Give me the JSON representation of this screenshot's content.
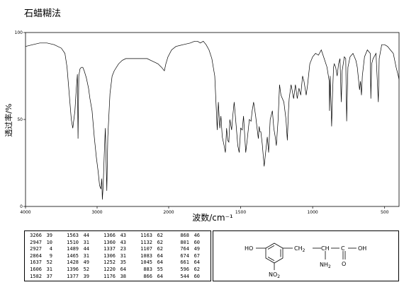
{
  "title": "石蜡糊法",
  "chart_data": {
    "type": "line",
    "xlabel": "波数/cm⁻¹",
    "ylabel": "透过率/%",
    "xlim": [
      4000,
      400
    ],
    "ylim": [
      0,
      100
    ],
    "x_ticks": [
      4000,
      3000,
      2000,
      1500,
      1000,
      500
    ],
    "y_ticks": [
      0,
      50,
      100
    ],
    "series": [
      {
        "points": [
          [
            4000,
            92
          ],
          [
            3900,
            93
          ],
          [
            3800,
            94
          ],
          [
            3700,
            94
          ],
          [
            3600,
            93
          ],
          [
            3500,
            91
          ],
          [
            3450,
            88
          ],
          [
            3420,
            80
          ],
          [
            3400,
            70
          ],
          [
            3380,
            60
          ],
          [
            3360,
            50
          ],
          [
            3340,
            45
          ],
          [
            3310,
            55
          ],
          [
            3290,
            68
          ],
          [
            3275,
            76
          ],
          [
            3266,
            39
          ],
          [
            3255,
            75
          ],
          [
            3240,
            79
          ],
          [
            3220,
            80
          ],
          [
            3200,
            80
          ],
          [
            3180,
            78
          ],
          [
            3150,
            74
          ],
          [
            3120,
            68
          ],
          [
            3100,
            62
          ],
          [
            3070,
            55
          ],
          [
            3040,
            40
          ],
          [
            3010,
            28
          ],
          [
            2985,
            20
          ],
          [
            2965,
            12
          ],
          [
            2947,
            10
          ],
          [
            2935,
            16
          ],
          [
            2927,
            4
          ],
          [
            2915,
            12
          ],
          [
            2900,
            30
          ],
          [
            2885,
            45
          ],
          [
            2864,
            9
          ],
          [
            2850,
            40
          ],
          [
            2820,
            65
          ],
          [
            2790,
            75
          ],
          [
            2760,
            78
          ],
          [
            2700,
            82
          ],
          [
            2650,
            84
          ],
          [
            2600,
            85
          ],
          [
            2500,
            85
          ],
          [
            2400,
            85
          ],
          [
            2300,
            85
          ],
          [
            2250,
            84
          ],
          [
            2200,
            83
          ],
          [
            2150,
            82
          ],
          [
            2100,
            80
          ],
          [
            2060,
            78
          ],
          [
            2040,
            82
          ],
          [
            2010,
            86
          ],
          [
            1980,
            90
          ],
          [
            1950,
            92
          ],
          [
            1900,
            93
          ],
          [
            1850,
            94
          ],
          [
            1820,
            95
          ],
          [
            1800,
            95
          ],
          [
            1780,
            94
          ],
          [
            1760,
            95
          ],
          [
            1740,
            93
          ],
          [
            1720,
            90
          ],
          [
            1700,
            85
          ],
          [
            1680,
            75
          ],
          [
            1663,
            44
          ],
          [
            1655,
            60
          ],
          [
            1645,
            45
          ],
          [
            1637,
            52
          ],
          [
            1628,
            40
          ],
          [
            1615,
            35
          ],
          [
            1606,
            31
          ],
          [
            1598,
            45
          ],
          [
            1590,
            38
          ],
          [
            1582,
            37
          ],
          [
            1575,
            50
          ],
          [
            1563,
            44
          ],
          [
            1555,
            52
          ],
          [
            1545,
            60
          ],
          [
            1530,
            45
          ],
          [
            1520,
            35
          ],
          [
            1510,
            31
          ],
          [
            1500,
            45
          ],
          [
            1489,
            44
          ],
          [
            1480,
            52
          ],
          [
            1465,
            31
          ],
          [
            1455,
            38
          ],
          [
            1440,
            50
          ],
          [
            1428,
            49
          ],
          [
            1420,
            55
          ],
          [
            1410,
            60
          ],
          [
            1396,
            52
          ],
          [
            1386,
            45
          ],
          [
            1377,
            39
          ],
          [
            1372,
            46
          ],
          [
            1366,
            43
          ],
          [
            1360,
            43
          ],
          [
            1350,
            36
          ],
          [
            1337,
            23
          ],
          [
            1328,
            30
          ],
          [
            1315,
            40
          ],
          [
            1306,
            31
          ],
          [
            1295,
            50
          ],
          [
            1280,
            55
          ],
          [
            1270,
            45
          ],
          [
            1260,
            40
          ],
          [
            1252,
            35
          ],
          [
            1240,
            50
          ],
          [
            1230,
            70
          ],
          [
            1220,
            64
          ],
          [
            1200,
            60
          ],
          [
            1185,
            50
          ],
          [
            1176,
            38
          ],
          [
            1168,
            55
          ],
          [
            1163,
            62
          ],
          [
            1150,
            70
          ],
          [
            1132,
            62
          ],
          [
            1120,
            70
          ],
          [
            1107,
            62
          ],
          [
            1095,
            68
          ],
          [
            1083,
            64
          ],
          [
            1070,
            75
          ],
          [
            1060,
            72
          ],
          [
            1045,
            64
          ],
          [
            1035,
            70
          ],
          [
            1020,
            82
          ],
          [
            1000,
            86
          ],
          [
            980,
            88
          ],
          [
            960,
            87
          ],
          [
            940,
            90
          ],
          [
            920,
            85
          ],
          [
            900,
            80
          ],
          [
            885,
            72
          ],
          [
            883,
            55
          ],
          [
            878,
            75
          ],
          [
            868,
            46
          ],
          [
            862,
            65
          ],
          [
            855,
            80
          ],
          [
            850,
            82
          ],
          [
            840,
            80
          ],
          [
            830,
            75
          ],
          [
            820,
            82
          ],
          [
            810,
            85
          ],
          [
            801,
            60
          ],
          [
            795,
            78
          ],
          [
            780,
            86
          ],
          [
            770,
            85
          ],
          [
            764,
            49
          ],
          [
            755,
            80
          ],
          [
            740,
            86
          ],
          [
            720,
            88
          ],
          [
            700,
            84
          ],
          [
            690,
            80
          ],
          [
            680,
            72
          ],
          [
            674,
            67
          ],
          [
            668,
            72
          ],
          [
            661,
            64
          ],
          [
            655,
            75
          ],
          [
            640,
            86
          ],
          [
            620,
            90
          ],
          [
            600,
            88
          ],
          [
            596,
            62
          ],
          [
            590,
            82
          ],
          [
            580,
            85
          ],
          [
            560,
            88
          ],
          [
            544,
            60
          ],
          [
            538,
            85
          ],
          [
            520,
            93
          ],
          [
            500,
            93
          ],
          [
            480,
            92
          ],
          [
            460,
            90
          ],
          [
            440,
            88
          ],
          [
            420,
            80
          ],
          [
            405,
            75
          ],
          [
            400,
            73
          ]
        ]
      }
    ],
    "peak_table": [
      [
        [
          3266,
          39
        ],
        [
          2947,
          10
        ],
        [
          2927,
          4
        ],
        [
          2864,
          9
        ],
        [
          1637,
          52
        ],
        [
          1606,
          31
        ],
        [
          1582,
          37
        ]
      ],
      [
        [
          1563,
          44
        ],
        [
          1510,
          31
        ],
        [
          1489,
          44
        ],
        [
          1465,
          31
        ],
        [
          1428,
          49
        ],
        [
          1396,
          52
        ],
        [
          1377,
          39
        ]
      ],
      [
        [
          1366,
          43
        ],
        [
          1360,
          43
        ],
        [
          1337,
          23
        ],
        [
          1306,
          31
        ],
        [
          1252,
          35
        ],
        [
          1220,
          64
        ],
        [
          1176,
          38
        ]
      ],
      [
        [
          1163,
          62
        ],
        [
          1132,
          62
        ],
        [
          1107,
          62
        ],
        [
          1083,
          64
        ],
        [
          1045,
          64
        ],
        [
          883,
          55
        ],
        [
          866,
          64
        ]
      ],
      [
        [
          868,
          46
        ],
        [
          801,
          60
        ],
        [
          764,
          49
        ],
        [
          674,
          67
        ],
        [
          661,
          64
        ],
        [
          596,
          62
        ],
        [
          544,
          60
        ]
      ]
    ]
  },
  "structure": {
    "ho": "HO",
    "ch2": "CH",
    "ch2_sub": "2",
    "ch": "CH",
    "c": "C",
    "oh": "OH",
    "nh2": "NH",
    "nh2_sub": "2",
    "o": "O",
    "no2": "NO",
    "no2_sub": "2"
  }
}
